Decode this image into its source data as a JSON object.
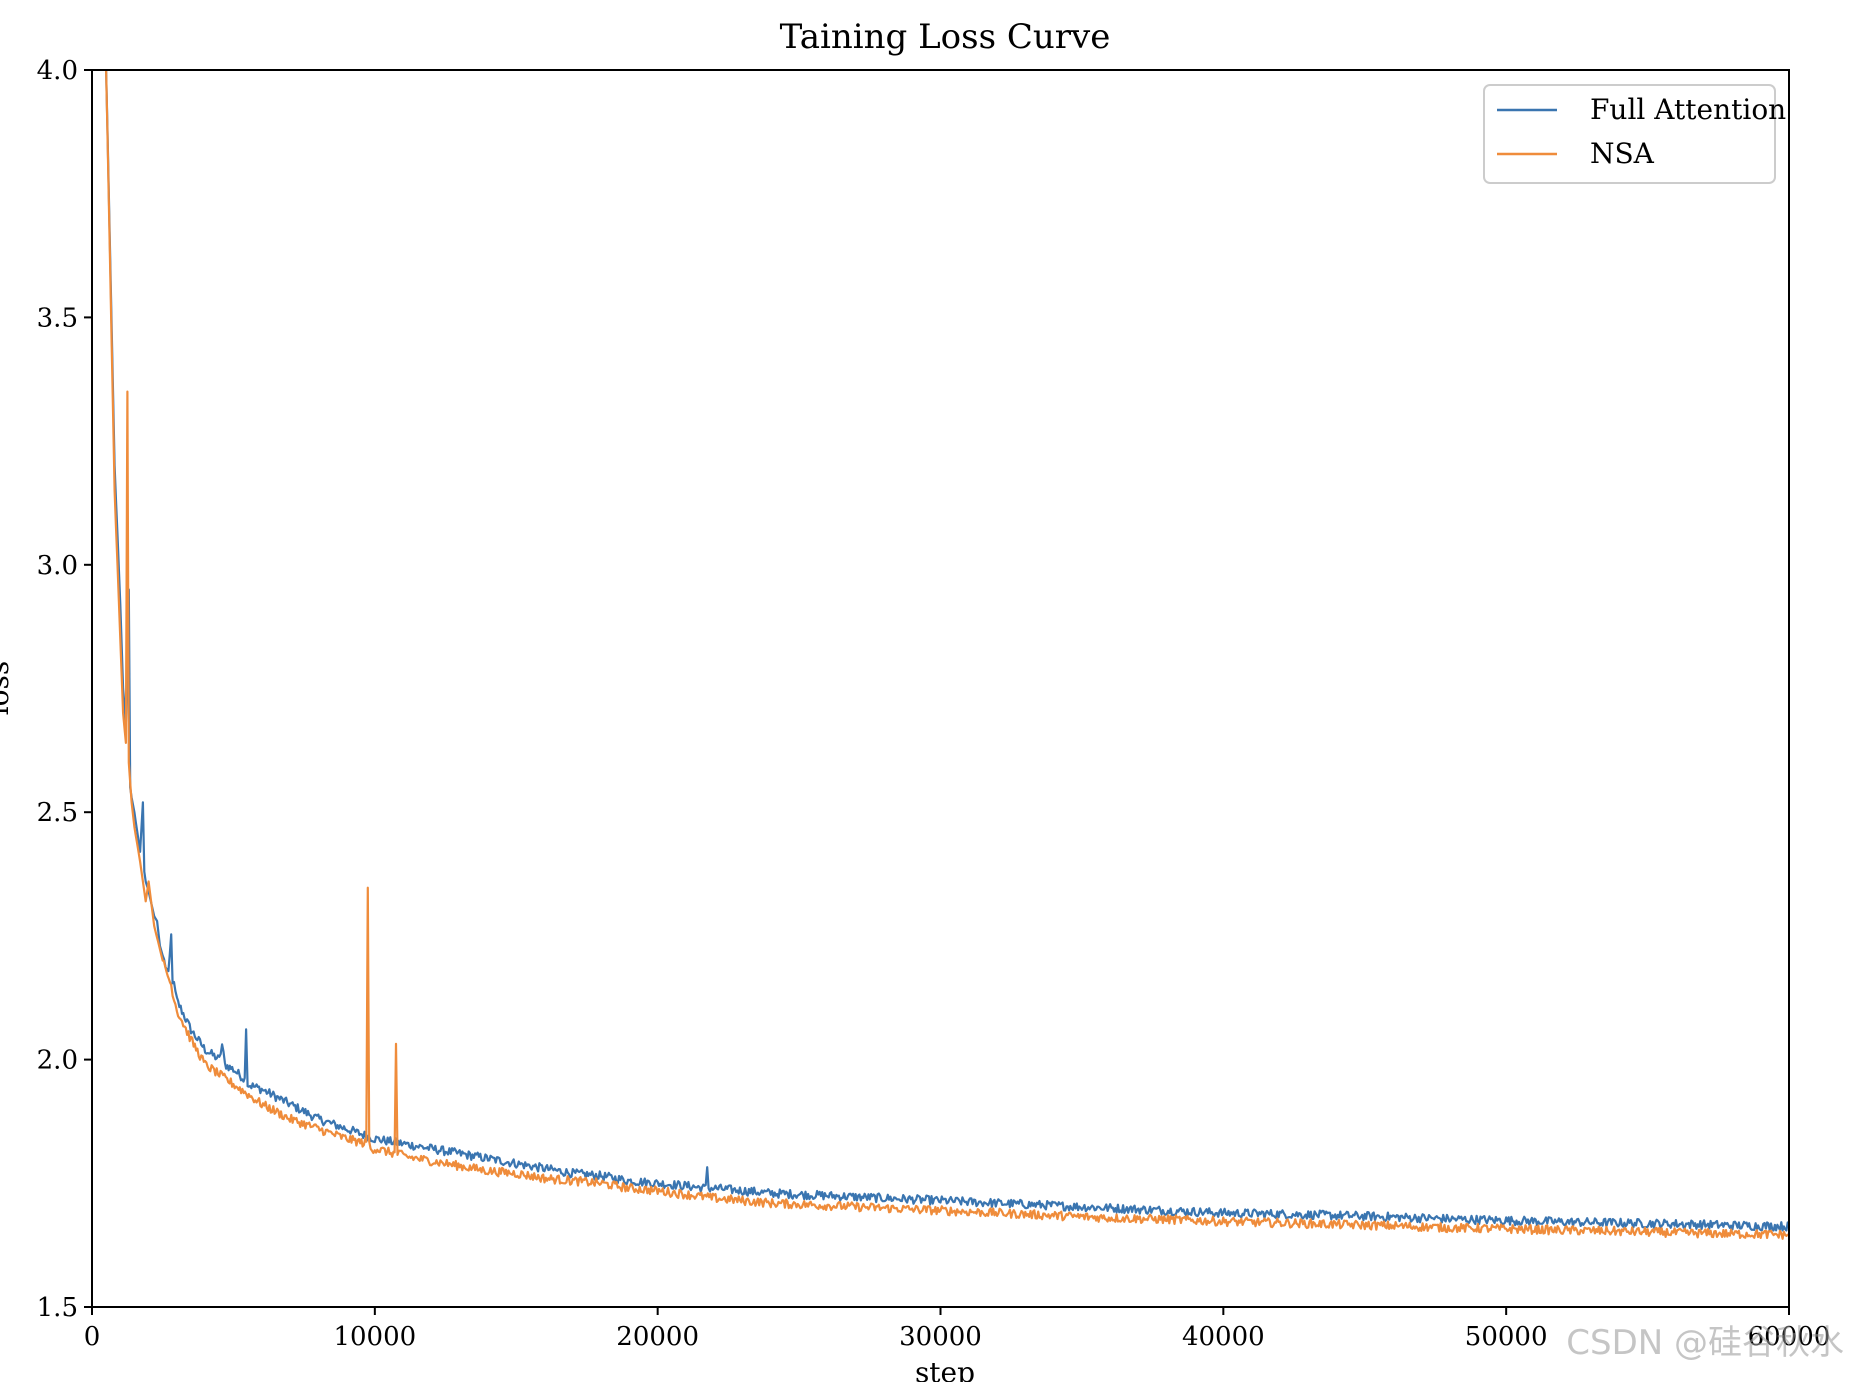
{
  "chart_data": {
    "type": "line",
    "title": "Taining Loss Curve",
    "xlabel": "step",
    "ylabel": "loss",
    "xlim": [
      0,
      60000
    ],
    "ylim": [
      1.5,
      4.0
    ],
    "xticks": [
      0,
      10000,
      20000,
      30000,
      40000,
      50000,
      60000
    ],
    "yticks": [
      1.5,
      2.0,
      2.5,
      3.0,
      3.5,
      4.0
    ],
    "xtick_labels": [
      "0",
      "10000",
      "20000",
      "30000",
      "40000",
      "50000",
      "60000"
    ],
    "ytick_labels": [
      "1.5",
      "2.0",
      "2.5",
      "3.0",
      "3.5",
      "4.0"
    ],
    "grid": false,
    "legend_position": "top-right",
    "series": [
      {
        "name": "Full Attention",
        "color": "#3a75b0",
        "x": [
          500,
          800,
          1000,
          1100,
          1200,
          1300,
          1350,
          1400,
          1500,
          1700,
          1800,
          1850,
          1900,
          2000,
          2200,
          2300,
          2400,
          2500,
          2700,
          2800,
          2850,
          2900,
          3000,
          3500,
          4000,
          4500,
          4600,
          4700,
          5000,
          5400,
          5450,
          5500,
          6000,
          7000,
          8000,
          9000,
          10000,
          11000,
          12000,
          13000,
          14000,
          15000,
          16000,
          17000,
          18000,
          19000,
          20000,
          21000,
          21700,
          21750,
          21800,
          22000,
          24000,
          26000,
          28000,
          30000,
          32000,
          34000,
          36000,
          38000,
          40000,
          42000,
          44000,
          46000,
          48000,
          50000,
          52000,
          54000,
          56000,
          58000,
          60000
        ],
        "values": [
          4.0,
          3.2,
          2.92,
          2.75,
          2.68,
          2.95,
          2.55,
          2.53,
          2.5,
          2.42,
          2.52,
          2.38,
          2.36,
          2.34,
          2.29,
          2.28,
          2.23,
          2.21,
          2.17,
          2.25,
          2.16,
          2.15,
          2.12,
          2.06,
          2.02,
          2.0,
          2.03,
          1.99,
          1.98,
          1.96,
          2.07,
          1.95,
          1.94,
          1.91,
          1.88,
          1.86,
          1.84,
          1.83,
          1.82,
          1.81,
          1.8,
          1.79,
          1.78,
          1.77,
          1.765,
          1.755,
          1.75,
          1.745,
          1.74,
          1.785,
          1.74,
          1.74,
          1.73,
          1.725,
          1.72,
          1.715,
          1.71,
          1.705,
          1.7,
          1.695,
          1.69,
          1.688,
          1.685,
          1.682,
          1.678,
          1.675,
          1.672,
          1.67,
          1.668,
          1.665,
          1.663
        ]
      },
      {
        "name": "NSA",
        "color": "#ef8c3b",
        "x": [
          500,
          800,
          1000,
          1100,
          1200,
          1250,
          1300,
          1400,
          1500,
          1700,
          1900,
          2000,
          2200,
          2500,
          2800,
          3000,
          3500,
          4000,
          4500,
          5000,
          5500,
          6000,
          7000,
          8000,
          9000,
          9700,
          9750,
          9800,
          9850,
          10000,
          10700,
          10750,
          10800,
          10850,
          11000,
          12000,
          13000,
          14000,
          15000,
          16000,
          17000,
          18000,
          19000,
          20000,
          22000,
          24000,
          26000,
          28000,
          30000,
          32000,
          34000,
          36000,
          38000,
          40000,
          42000,
          44000,
          46000,
          48000,
          50000,
          52000,
          54000,
          56000,
          58000,
          60000
        ],
        "values": [
          4.0,
          3.15,
          2.85,
          2.7,
          2.64,
          3.35,
          2.6,
          2.52,
          2.47,
          2.4,
          2.32,
          2.36,
          2.27,
          2.2,
          2.15,
          2.1,
          2.04,
          1.99,
          1.97,
          1.95,
          1.93,
          1.91,
          1.88,
          1.86,
          1.84,
          1.83,
          2.35,
          1.83,
          1.82,
          1.82,
          1.81,
          2.03,
          1.81,
          1.81,
          1.805,
          1.795,
          1.785,
          1.775,
          1.77,
          1.76,
          1.755,
          1.75,
          1.74,
          1.735,
          1.72,
          1.71,
          1.705,
          1.7,
          1.695,
          1.69,
          1.685,
          1.68,
          1.677,
          1.673,
          1.67,
          1.667,
          1.664,
          1.66,
          1.658,
          1.655,
          1.653,
          1.65,
          1.648,
          1.646
        ]
      }
    ]
  },
  "watermark": "CSDN @硅谷秋水"
}
